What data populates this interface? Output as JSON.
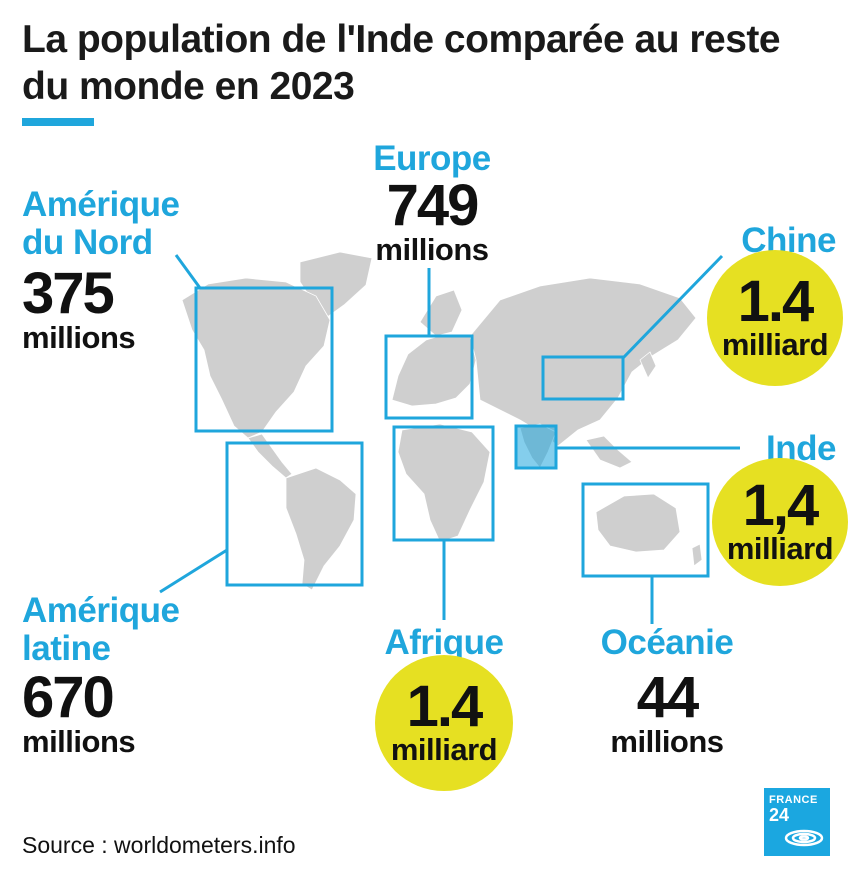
{
  "title": "La population de l'Inde comparée au reste du monde en 2023",
  "source": "Source : worldometers.info",
  "logo": {
    "line1": "FRANCE",
    "line2": "24"
  },
  "colors": {
    "accent": "#1fa6dc",
    "highlight": "#e6e022",
    "land": "#cfcfcf",
    "text": "#111111"
  },
  "regions": {
    "north_america": {
      "name_line1": "Amérique",
      "name_line2": "du Nord",
      "value": "375",
      "unit": "millions"
    },
    "europe": {
      "name": "Europe",
      "value": "749",
      "unit": "millions"
    },
    "china": {
      "name": "Chine",
      "value": "1.4",
      "unit": "milliard"
    },
    "india": {
      "name": "Inde",
      "value": "1,4",
      "unit": "milliard"
    },
    "latin_america": {
      "name_line1": "Amérique",
      "name_line2": "latine",
      "value": "670",
      "unit": "millions"
    },
    "africa": {
      "name": "Afrique",
      "value": "1.4",
      "unit": "milliard"
    },
    "oceania": {
      "name": "Océanie",
      "value": "44",
      "unit": "millions"
    }
  }
}
